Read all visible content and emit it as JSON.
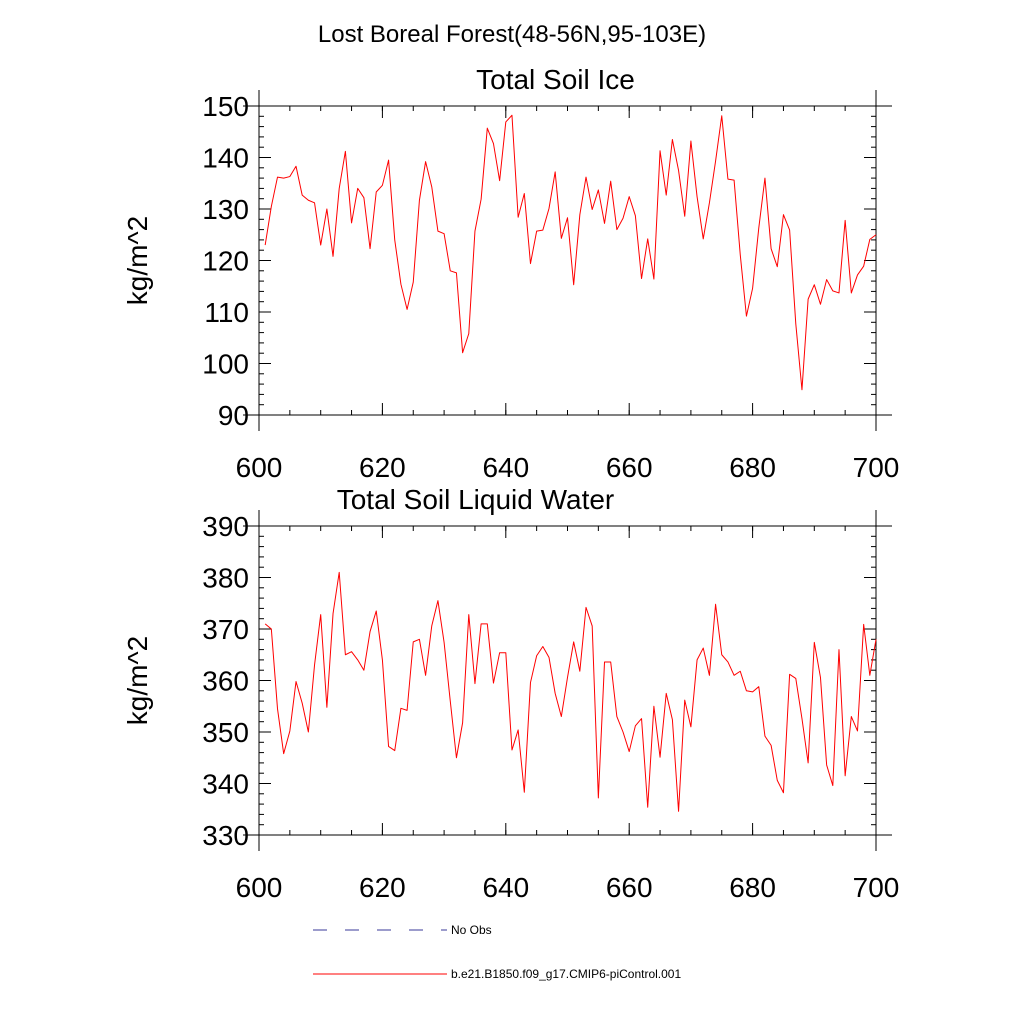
{
  "page_title": "Lost Boreal Forest(48-56N,95-103E)",
  "colors": {
    "series": "#ff0000",
    "obs": "#3a3a9a",
    "axis": "#000000"
  },
  "legend": {
    "items": [
      {
        "label": "No Obs",
        "style": "dashed",
        "color": "#3a3a9a"
      },
      {
        "label": "b.e21.B1850.f09_g17.CMIP6-piControl.001",
        "style": "solid",
        "color": "#ff0000"
      }
    ]
  },
  "chart_data": [
    {
      "type": "line",
      "title": "Total Soil Ice",
      "xlabel": "",
      "ylabel": "kg/m^2",
      "xlim": [
        600,
        700
      ],
      "ylim": [
        90,
        150
      ],
      "xticks": [
        600,
        620,
        640,
        660,
        680,
        700
      ],
      "yticks": [
        90,
        100,
        110,
        120,
        130,
        140,
        150
      ],
      "x_start": 601,
      "series": [
        {
          "name": "b.e21.B1850.f09_g17.CMIP6-piControl.001",
          "values": [
            123,
            130.5,
            136.2,
            136,
            136.3,
            138.3,
            132.7,
            131.7,
            131.2,
            123,
            130,
            120.8,
            134,
            141.2,
            127.3,
            134,
            132.2,
            122.3,
            133.3,
            134.6,
            139.5,
            124,
            115.4,
            110.5,
            115.8,
            131.7,
            139.2,
            134.3,
            125.7,
            125.2,
            118,
            117.6,
            102.1,
            105.8,
            125.7,
            131.9,
            145.7,
            142.7,
            135.5,
            146.9,
            148.2,
            128.4,
            133,
            119.4,
            125.7,
            125.9,
            130.1,
            137.2,
            124.3,
            128.3,
            115.3,
            128.9,
            136.2,
            129.9,
            133.7,
            127.2,
            135.4,
            126,
            128.2,
            132.4,
            128.7,
            116.5,
            124.2,
            116.4,
            141.3,
            132.7,
            143.5,
            137.5,
            128.6,
            143.2,
            132.4,
            124.2,
            131.2,
            139.3,
            148.1,
            135.8,
            135.6,
            121.1,
            109.2,
            114.6,
            126.3,
            136,
            122.3,
            118.8,
            128.9,
            125.9,
            107.7,
            94.9,
            112.5,
            115.3,
            111.5,
            116.3,
            114.1,
            113.7,
            127.8,
            113.7,
            117.2,
            118.9,
            124.1,
            125
          ]
        }
      ]
    },
    {
      "type": "line",
      "title": "Total Soil Liquid Water",
      "xlabel": "",
      "ylabel": "kg/m^2",
      "xlim": [
        600,
        700
      ],
      "ylim": [
        330,
        390
      ],
      "xticks": [
        600,
        620,
        640,
        660,
        680,
        700
      ],
      "yticks": [
        330,
        340,
        350,
        360,
        370,
        380,
        390
      ],
      "x_start": 601,
      "series": [
        {
          "name": "b.e21.B1850.f09_g17.CMIP6-piControl.001",
          "values": [
            371,
            370,
            354.5,
            345.8,
            350.2,
            359.8,
            355.6,
            350,
            363,
            372.8,
            354.8,
            373,
            381,
            365,
            365.6,
            364,
            362,
            369.5,
            373.5,
            364,
            347.2,
            346.4,
            354.6,
            354.2,
            367.5,
            368,
            361,
            370.6,
            375.5,
            367.4,
            356,
            345,
            351.8,
            372.8,
            359.4,
            371,
            371,
            359.5,
            365.4,
            365.4,
            346.5,
            350.4,
            338.3,
            359.6,
            364.8,
            366.6,
            364.5,
            357.5,
            353,
            360.6,
            367.5,
            361.8,
            374.2,
            370.6,
            337.2,
            363.6,
            363.6,
            353,
            350,
            346.2,
            351.2,
            352.6,
            335.4,
            355,
            345.1,
            357.5,
            352.4,
            334.6,
            356.2,
            351,
            364,
            366.3,
            361,
            374.8,
            365,
            363.6,
            361,
            361.8,
            358,
            357.8,
            358.8,
            349.2,
            347.4,
            340.6,
            338.2,
            361.2,
            360.4,
            352.6,
            344,
            367.4,
            360.6,
            343.6,
            339.6,
            366,
            341.5,
            353,
            350.2,
            370.9,
            361,
            368
          ]
        }
      ]
    }
  ]
}
